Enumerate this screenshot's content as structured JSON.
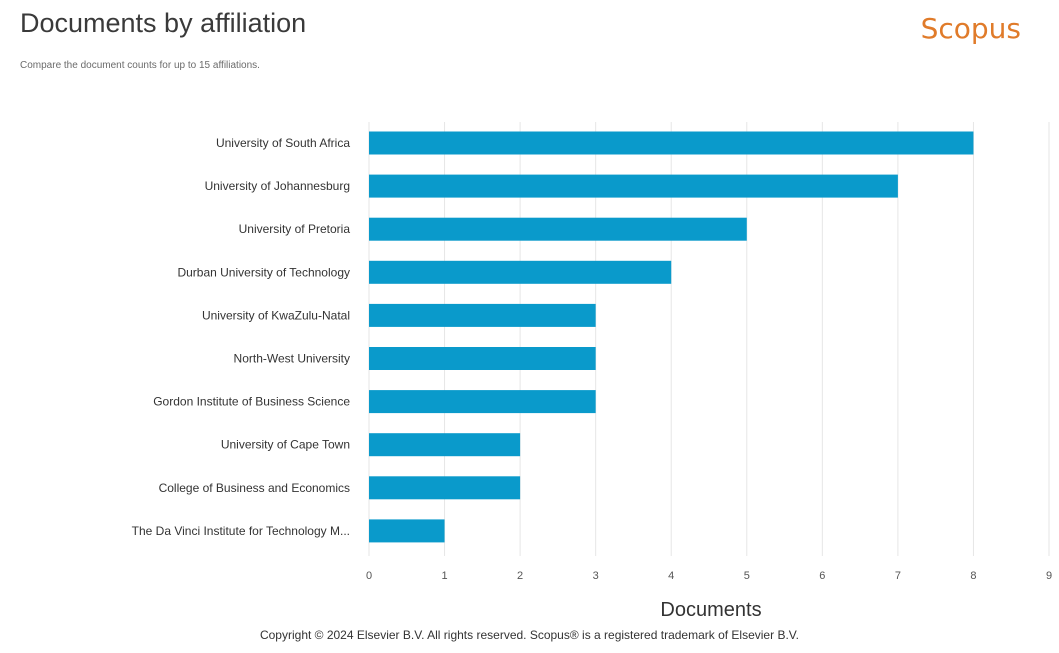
{
  "header": {
    "title": "Documents by affiliation",
    "subtitle": "Compare the document counts for up to 15 affiliations.",
    "brand": "Scopus"
  },
  "footer": {
    "copyright": "Copyright © 2024 Elsevier B.V. All rights reserved. Scopus® is a registered trademark of Elsevier B.V."
  },
  "colors": {
    "bar": "#0a9acb",
    "brand": "#e07b2a",
    "grid": "#e6e6e6"
  },
  "chart_data": {
    "type": "bar",
    "orientation": "horizontal",
    "categories": [
      "University of South Africa",
      "University of Johannesburg",
      "University of Pretoria",
      "Durban University of Technology",
      "University of KwaZulu-Natal",
      "North-West University",
      "Gordon Institute of Business Science",
      "University of Cape Town",
      "College of Business and Economics",
      "The Da Vinci Institute for Technology M..."
    ],
    "values": [
      8,
      7,
      5,
      4,
      3,
      3,
      3,
      2,
      2,
      1
    ],
    "xlabel": "Documents",
    "ylabel": "",
    "xlim": [
      0,
      9
    ],
    "xticks": [
      0,
      1,
      2,
      3,
      4,
      5,
      6,
      7,
      8,
      9
    ],
    "grid": true
  }
}
